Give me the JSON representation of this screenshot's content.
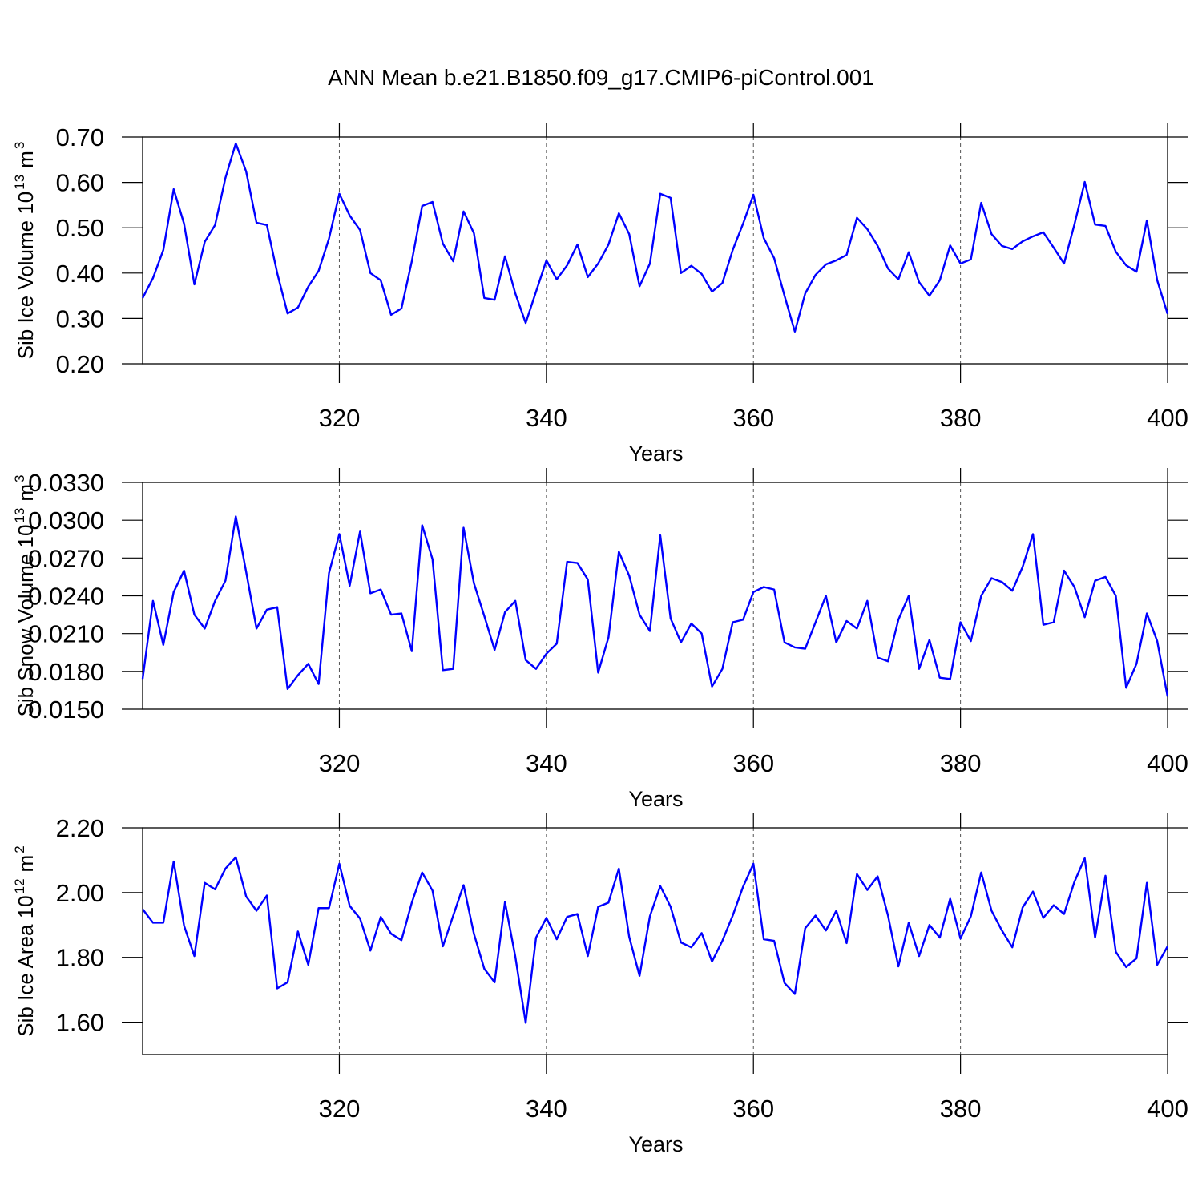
{
  "title": "ANN Mean b.e21.B1850.f09_g17.CMIP6-piControl.001",
  "chart_data": [
    {
      "type": "line",
      "ylabel": [
        "Sib Ice Volume 10",
        "13",
        "m",
        "3"
      ],
      "xlabel": "Years",
      "x": [
        301,
        302,
        303,
        304,
        305,
        306,
        307,
        308,
        309,
        310,
        311,
        312,
        313,
        314,
        315,
        316,
        317,
        318,
        319,
        320,
        321,
        322,
        323,
        324,
        325,
        326,
        327,
        328,
        329,
        330,
        331,
        332,
        333,
        334,
        335,
        336,
        337,
        338,
        339,
        340,
        341,
        342,
        343,
        344,
        345,
        346,
        347,
        348,
        349,
        350,
        351,
        352,
        353,
        354,
        355,
        356,
        357,
        358,
        359,
        360,
        361,
        362,
        363,
        364,
        365,
        366,
        367,
        368,
        369,
        370,
        371,
        372,
        373,
        374,
        375,
        376,
        377,
        378,
        379,
        380,
        381,
        382,
        383,
        384,
        385,
        386,
        387,
        388,
        389,
        390,
        391,
        392,
        393,
        394,
        395,
        396,
        397,
        398,
        399,
        400
      ],
      "series": [
        {
          "color": "#0000ff",
          "values": [
            0.345,
            0.389,
            0.451,
            0.585,
            0.509,
            0.375,
            0.469,
            0.506,
            0.61,
            0.686,
            0.624,
            0.511,
            0.506,
            0.4,
            0.311,
            0.324,
            0.37,
            0.405,
            0.476,
            0.575,
            0.527,
            0.495,
            0.4,
            0.384,
            0.308,
            0.322,
            0.426,
            0.548,
            0.557,
            0.465,
            0.426,
            0.536,
            0.488,
            0.345,
            0.341,
            0.437,
            0.355,
            0.29,
            0.359,
            0.428,
            0.386,
            0.417,
            0.463,
            0.391,
            0.421,
            0.463,
            0.532,
            0.486,
            0.371,
            0.421,
            0.575,
            0.566,
            0.4,
            0.416,
            0.398,
            0.359,
            0.378,
            0.451,
            0.509,
            0.573,
            0.477,
            0.433,
            0.35,
            0.271,
            0.355,
            0.396,
            0.419,
            0.428,
            0.44,
            0.522,
            0.497,
            0.46,
            0.41,
            0.386,
            0.446,
            0.38,
            0.35,
            0.384,
            0.461,
            0.421,
            0.43,
            0.555,
            0.486,
            0.46,
            0.453,
            0.47,
            0.481,
            0.49,
            0.456,
            0.421,
            0.507,
            0.601,
            0.507,
            0.504,
            0.447,
            0.417,
            0.403,
            0.516,
            0.384,
            0.31
          ]
        }
      ],
      "xlim": [
        301,
        400
      ],
      "xticks": [
        320,
        340,
        360,
        380,
        400
      ],
      "ylim": [
        0.2,
        0.7
      ],
      "yticks": [
        {
          "value": 0.2,
          "label": "0.20"
        },
        {
          "value": 0.3,
          "label": "0.30"
        },
        {
          "value": 0.4,
          "label": "0.40"
        },
        {
          "value": 0.5,
          "label": "0.50"
        },
        {
          "value": 0.6,
          "label": "0.60"
        },
        {
          "value": 0.7,
          "label": "0.70"
        }
      ],
      "grid": true
    },
    {
      "type": "line",
      "ylabel": [
        "Sib Snow Volume 10",
        "13",
        "m",
        "3"
      ],
      "xlabel": "Years",
      "x": [
        301,
        302,
        303,
        304,
        305,
        306,
        307,
        308,
        309,
        310,
        311,
        312,
        313,
        314,
        315,
        316,
        317,
        318,
        319,
        320,
        321,
        322,
        323,
        324,
        325,
        326,
        327,
        328,
        329,
        330,
        331,
        332,
        333,
        334,
        335,
        336,
        337,
        338,
        339,
        340,
        341,
        342,
        343,
        344,
        345,
        346,
        347,
        348,
        349,
        350,
        351,
        352,
        353,
        354,
        355,
        356,
        357,
        358,
        359,
        360,
        361,
        362,
        363,
        364,
        365,
        366,
        367,
        368,
        369,
        370,
        371,
        372,
        373,
        374,
        375,
        376,
        377,
        378,
        379,
        380,
        381,
        382,
        383,
        384,
        385,
        386,
        387,
        388,
        389,
        390,
        391,
        392,
        393,
        394,
        395,
        396,
        397,
        398,
        399,
        400
      ],
      "series": [
        {
          "color": "#0000ff",
          "values": [
            0.0174,
            0.0236,
            0.0201,
            0.0243,
            0.026,
            0.0225,
            0.0214,
            0.0236,
            0.0252,
            0.0303,
            0.0259,
            0.0214,
            0.0229,
            0.0231,
            0.0166,
            0.0177,
            0.0186,
            0.017,
            0.0258,
            0.0289,
            0.0248,
            0.0291,
            0.0242,
            0.0245,
            0.0225,
            0.0226,
            0.0196,
            0.0296,
            0.0269,
            0.0181,
            0.0182,
            0.0294,
            0.025,
            0.0224,
            0.0197,
            0.0227,
            0.0236,
            0.0189,
            0.0182,
            0.0194,
            0.0202,
            0.0267,
            0.0266,
            0.0253,
            0.0179,
            0.0207,
            0.0275,
            0.0256,
            0.0225,
            0.0212,
            0.0288,
            0.0222,
            0.0203,
            0.0218,
            0.021,
            0.0168,
            0.0182,
            0.0219,
            0.0221,
            0.0243,
            0.0247,
            0.0245,
            0.0203,
            0.0199,
            0.0198,
            0.0219,
            0.024,
            0.0203,
            0.022,
            0.0214,
            0.0236,
            0.0191,
            0.0188,
            0.0221,
            0.024,
            0.0182,
            0.0205,
            0.0175,
            0.0174,
            0.0219,
            0.0204,
            0.024,
            0.0254,
            0.0251,
            0.0244,
            0.0263,
            0.0289,
            0.0217,
            0.0219,
            0.026,
            0.0247,
            0.0223,
            0.0252,
            0.0255,
            0.024,
            0.0167,
            0.0186,
            0.0226,
            0.0204,
            0.016
          ]
        }
      ],
      "xlim": [
        301,
        400
      ],
      "xticks": [
        320,
        340,
        360,
        380,
        400
      ],
      "ylim": [
        0.015,
        0.033
      ],
      "yticks": [
        {
          "value": 0.015,
          "label": "0.0150"
        },
        {
          "value": 0.018,
          "label": "0.0180"
        },
        {
          "value": 0.021,
          "label": "0.0210"
        },
        {
          "value": 0.024,
          "label": "0.0240"
        },
        {
          "value": 0.027,
          "label": "0.0270"
        },
        {
          "value": 0.03,
          "label": "0.0300"
        },
        {
          "value": 0.033,
          "label": "0.0330"
        }
      ],
      "grid": true
    },
    {
      "type": "line",
      "ylabel": [
        "Sib Ice Area 10",
        "12",
        "m",
        "2"
      ],
      "xlabel": "Years",
      "x": [
        301,
        302,
        303,
        304,
        305,
        306,
        307,
        308,
        309,
        310,
        311,
        312,
        313,
        314,
        315,
        316,
        317,
        318,
        319,
        320,
        321,
        322,
        323,
        324,
        325,
        326,
        327,
        328,
        329,
        330,
        331,
        332,
        333,
        334,
        335,
        336,
        337,
        338,
        339,
        340,
        341,
        342,
        343,
        344,
        345,
        346,
        347,
        348,
        349,
        350,
        351,
        352,
        353,
        354,
        355,
        356,
        357,
        358,
        359,
        360,
        361,
        362,
        363,
        364,
        365,
        366,
        367,
        368,
        369,
        370,
        371,
        372,
        373,
        374,
        375,
        376,
        377,
        378,
        379,
        380,
        381,
        382,
        383,
        384,
        385,
        386,
        387,
        388,
        389,
        390,
        391,
        392,
        393,
        394,
        395,
        396,
        397,
        398,
        399,
        400
      ],
      "series": [
        {
          "color": "#0000ff",
          "values": [
            1.949,
            1.907,
            1.907,
            2.096,
            1.898,
            1.804,
            2.03,
            2.01,
            2.074,
            2.109,
            1.988,
            1.944,
            1.991,
            1.704,
            1.723,
            1.88,
            1.777,
            1.952,
            1.952,
            2.089,
            1.959,
            1.92,
            1.821,
            1.925,
            1.873,
            1.853,
            1.969,
            2.062,
            2.006,
            1.834,
            1.929,
            2.023,
            1.873,
            1.765,
            1.723,
            1.971,
            1.802,
            1.598,
            1.861,
            1.922,
            1.856,
            1.925,
            1.934,
            1.804,
            1.956,
            1.969,
            2.074,
            1.863,
            1.743,
            1.927,
            2.02,
            1.956,
            1.846,
            1.831,
            1.875,
            1.787,
            1.851,
            1.929,
            2.018,
            2.089,
            1.856,
            1.851,
            1.721,
            1.687,
            1.89,
            1.929,
            1.883,
            1.944,
            1.844,
            2.057,
            2.008,
            2.05,
            1.929,
            1.772,
            1.907,
            1.804,
            1.9,
            1.861,
            1.981,
            1.858,
            1.927,
            2.062,
            1.944,
            1.883,
            1.831,
            1.954,
            2.003,
            1.922,
            1.961,
            1.934,
            2.033,
            2.106,
            1.861,
            2.052,
            1.817,
            1.77,
            1.797,
            2.03,
            1.777,
            1.834
          ]
        }
      ],
      "xlim": [
        301,
        400
      ],
      "xticks": [
        320,
        340,
        360,
        380,
        400
      ],
      "ylim": [
        1.5,
        2.2
      ],
      "yticks": [
        {
          "value": 1.6,
          "label": "1.60"
        },
        {
          "value": 1.8,
          "label": "1.80"
        },
        {
          "value": 2.0,
          "label": "2.00"
        },
        {
          "value": 2.2,
          "label": "2.20"
        }
      ],
      "grid": true
    }
  ]
}
